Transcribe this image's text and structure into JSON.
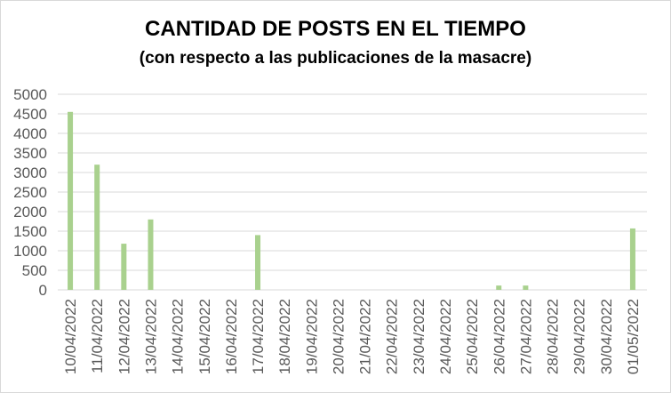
{
  "chart_data": {
    "type": "bar",
    "title": "CANTIDAD DE POSTS EN EL TIEMPO",
    "subtitle": "(con respecto a las publicaciones de la masacre)",
    "xlabel": "",
    "ylabel": "",
    "categories": [
      "10/04/2022",
      "11/04/2022",
      "12/04/2022",
      "13/04/2022",
      "14/04/2022",
      "15/04/2022",
      "16/04/2022",
      "17/04/2022",
      "18/04/2022",
      "19/04/2022",
      "20/04/2022",
      "21/04/2022",
      "22/04/2022",
      "23/04/2022",
      "24/04/2022",
      "25/04/2022",
      "26/04/2022",
      "27/04/2022",
      "28/04/2022",
      "29/04/2022",
      "30/04/2022",
      "01/05/2022"
    ],
    "values": [
      4550,
      3200,
      1180,
      1800,
      0,
      0,
      0,
      1400,
      0,
      0,
      0,
      0,
      0,
      0,
      0,
      0,
      110,
      110,
      0,
      0,
      0,
      1570
    ],
    "ylim": [
      0,
      5000
    ],
    "yticks": [
      0,
      500,
      1000,
      1500,
      2000,
      2500,
      3000,
      3500,
      4000,
      4500,
      5000
    ],
    "grid": true,
    "bar_color": "#a9d18e",
    "legend": "none"
  }
}
